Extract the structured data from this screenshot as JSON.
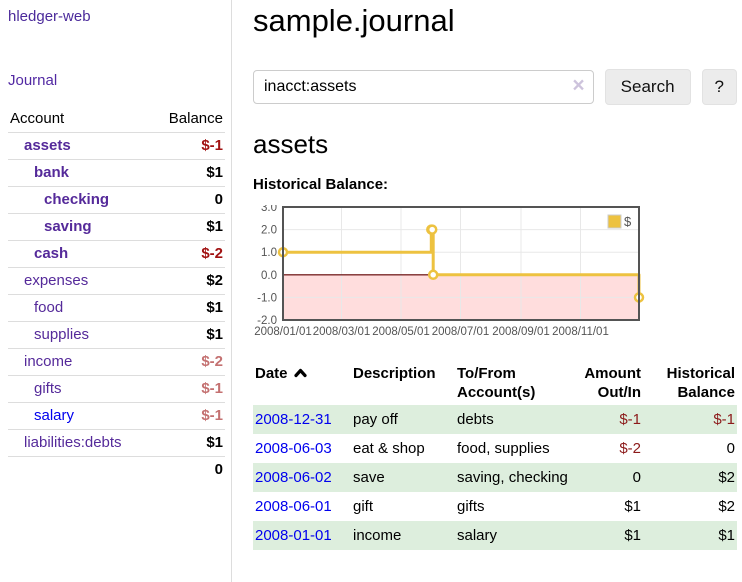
{
  "colors": {
    "link_purple": "#552a9a",
    "link_blue": "#0000ee",
    "negative_strong": "#a11212",
    "negative_light": "#c47171",
    "register_negative": "#8c1a1a",
    "row_green": "#ddeedd",
    "button_bg": "#ececec",
    "chart_line": "#EDC240",
    "chart_negative_fill": "#ffdddd",
    "chart_zero_line": "#7b2929",
    "chart_border": "#545454",
    "chart_grid": "#e8e8e8"
  },
  "sidebar": {
    "brand": "hledger-web",
    "nav": {
      "journal": "Journal"
    },
    "accounts": {
      "headers": {
        "account": "Account",
        "balance": "Balance"
      },
      "rows": [
        {
          "account": "assets",
          "balance": "$-1"
        },
        {
          "account": "bank",
          "balance": "$1"
        },
        {
          "account": "checking",
          "balance": "0"
        },
        {
          "account": "saving",
          "balance": "$1"
        },
        {
          "account": "cash",
          "balance": "$-2"
        },
        {
          "account": "expenses",
          "balance": "$2"
        },
        {
          "account": "food",
          "balance": "$1"
        },
        {
          "account": "supplies",
          "balance": "$1"
        },
        {
          "account": "income",
          "balance": "$-2"
        },
        {
          "account": "gifts",
          "balance": "$-1"
        },
        {
          "account": "salary",
          "balance": "$-1"
        },
        {
          "account": "liabilities:debts",
          "balance": "$1"
        }
      ],
      "total": "0"
    }
  },
  "header": {
    "title": "sample.journal"
  },
  "search": {
    "value": "inacct:assets",
    "clear": "×",
    "button_label": "Search",
    "help_label": "?"
  },
  "content": {
    "account_heading": "assets",
    "chart_heading": "Historical Balance:"
  },
  "chart_data": {
    "type": "line",
    "title": "Historical Balance",
    "step": true,
    "xrange": [
      "2008-01-01",
      "2008-12-31"
    ],
    "ylim": [
      -2,
      3
    ],
    "yticks": [
      "3.0",
      "2.0",
      "1.0",
      "0.0",
      "-1.0",
      "-2.0"
    ],
    "xticks": [
      "2008/01/01",
      "2008/03/01",
      "2008/05/01",
      "2008/07/01",
      "2008/09/01",
      "2008/11/01"
    ],
    "series": [
      {
        "name": "$",
        "color": "#EDC240",
        "points": [
          [
            "2008-01-01",
            1
          ],
          [
            "2008-06-01",
            2
          ],
          [
            "2008-06-02",
            2
          ],
          [
            "2008-06-03",
            0
          ],
          [
            "2008-12-31",
            -1
          ]
        ]
      }
    ],
    "legend": {
      "label": "$",
      "position": "top-right"
    },
    "grid": true,
    "negative_fill": "#ffdddd",
    "zero_line_color": "#7b2929"
  },
  "register": {
    "headers": [
      "Date",
      "Description",
      "To/From Account(s)",
      "Amount Out/In",
      "Historical Balance"
    ],
    "sort_icon": "chevron-up",
    "rows": [
      {
        "date": "2008-12-31",
        "description": "pay off",
        "accounts": "debts",
        "amount": "$-1",
        "balance": "$-1"
      },
      {
        "date": "2008-06-03",
        "description": "eat & shop",
        "accounts": "food, supplies",
        "amount": "$-2",
        "balance": "0"
      },
      {
        "date": "2008-06-02",
        "description": "save",
        "accounts": "saving, checking",
        "amount": "0",
        "balance": "$2"
      },
      {
        "date": "2008-06-01",
        "description": "gift",
        "accounts": "gifts",
        "amount": "$1",
        "balance": "$2"
      },
      {
        "date": "2008-01-01",
        "description": "income",
        "accounts": "salary",
        "amount": "$1",
        "balance": "$1"
      }
    ]
  }
}
